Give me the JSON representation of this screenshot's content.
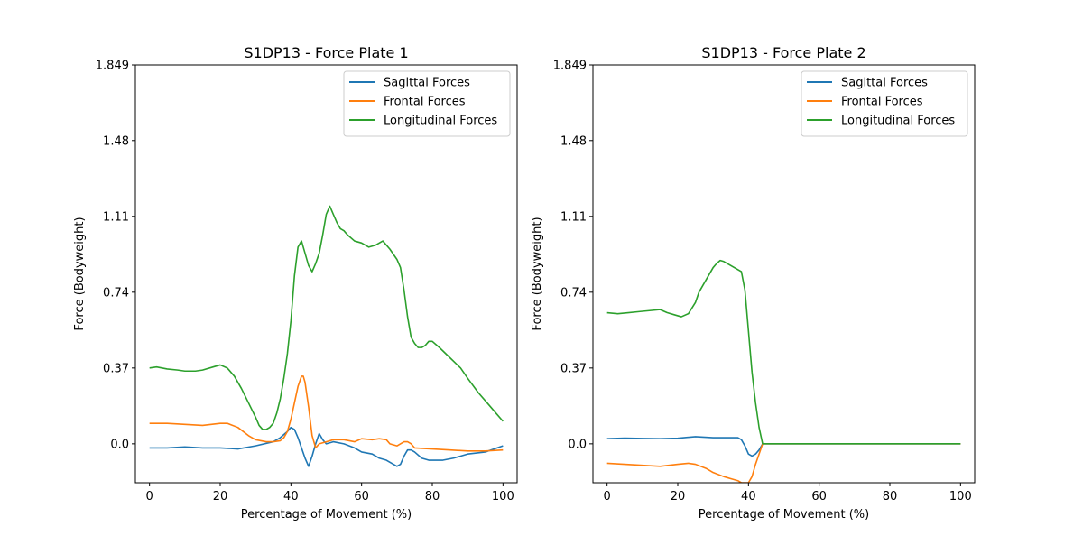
{
  "chart_data": [
    {
      "type": "line",
      "title": "S1DP13 - Force Plate 1",
      "xlabel": "Percentage of Movement (%)",
      "ylabel": "Force (Bodyweight)",
      "xlim": [
        -4,
        104
      ],
      "ylim": [
        -0.19,
        1.849
      ],
      "x_ticks": [
        0,
        20,
        40,
        60,
        80,
        100
      ],
      "x_tick_labels": [
        "0",
        "20",
        "40",
        "60",
        "80",
        "100"
      ],
      "y_ticks": [
        0.0,
        0.37,
        0.74,
        1.11,
        1.48,
        1.849
      ],
      "y_tick_labels": [
        "0.0",
        "0.37",
        "0.74",
        "1.11",
        "1.48",
        "1.849"
      ],
      "grid": false,
      "legend_position": "top-right",
      "series": [
        {
          "name": "Sagittal Forces",
          "color": "#1f77b4",
          "x": [
            0,
            5,
            10,
            15,
            20,
            25,
            30,
            35,
            37,
            39,
            40,
            41,
            42,
            43,
            44,
            45,
            46,
            47,
            48,
            49,
            50,
            52,
            55,
            58,
            60,
            63,
            65,
            67,
            69,
            70,
            71,
            72,
            73,
            74,
            75,
            77,
            79,
            80,
            83,
            86,
            90,
            95,
            100
          ],
          "y": [
            -0.02,
            -0.02,
            -0.015,
            -0.02,
            -0.02,
            -0.025,
            -0.01,
            0.01,
            0.03,
            0.06,
            0.08,
            0.07,
            0.03,
            -0.02,
            -0.07,
            -0.11,
            -0.06,
            0.0,
            0.05,
            0.02,
            0.0,
            0.01,
            0.0,
            -0.02,
            -0.04,
            -0.05,
            -0.07,
            -0.08,
            -0.1,
            -0.11,
            -0.1,
            -0.06,
            -0.03,
            -0.03,
            -0.04,
            -0.07,
            -0.08,
            -0.08,
            -0.08,
            -0.07,
            -0.05,
            -0.04,
            -0.01
          ]
        },
        {
          "name": "Frontal Forces",
          "color": "#ff7f0e",
          "x": [
            0,
            5,
            10,
            15,
            20,
            22,
            25,
            28,
            30,
            33,
            35,
            37,
            38,
            39,
            40,
            41,
            42,
            43,
            43.5,
            44,
            45,
            46,
            47,
            48,
            50,
            52,
            55,
            58,
            60,
            63,
            65,
            67,
            68,
            70,
            72,
            73,
            74,
            75,
            80,
            85,
            90,
            95,
            100
          ],
          "y": [
            0.1,
            0.1,
            0.095,
            0.09,
            0.1,
            0.1,
            0.08,
            0.04,
            0.02,
            0.01,
            0.01,
            0.015,
            0.03,
            0.06,
            0.12,
            0.2,
            0.28,
            0.33,
            0.33,
            0.3,
            0.18,
            0.04,
            -0.02,
            0.0,
            0.01,
            0.02,
            0.02,
            0.01,
            0.025,
            0.02,
            0.025,
            0.02,
            0.0,
            -0.01,
            0.01,
            0.01,
            0.0,
            -0.02,
            -0.025,
            -0.03,
            -0.035,
            -0.035,
            -0.03
          ]
        },
        {
          "name": "Longitudinal Forces",
          "color": "#2ca02c",
          "x": [
            0,
            2,
            5,
            8,
            10,
            13,
            15,
            18,
            20,
            22,
            24,
            26,
            28,
            30,
            31,
            32,
            33,
            34,
            35,
            36,
            37,
            38,
            39,
            40,
            41,
            42,
            43,
            44,
            45,
            46,
            47,
            48,
            49,
            50,
            51,
            52,
            53,
            54,
            55,
            56,
            58,
            60,
            62,
            64,
            66,
            68,
            70,
            71,
            72,
            73,
            74,
            75,
            76,
            77,
            78,
            79,
            80,
            82,
            85,
            88,
            90,
            93,
            96,
            98,
            100
          ],
          "y": [
            0.37,
            0.375,
            0.365,
            0.36,
            0.355,
            0.355,
            0.36,
            0.375,
            0.385,
            0.37,
            0.33,
            0.27,
            0.2,
            0.13,
            0.09,
            0.07,
            0.07,
            0.08,
            0.1,
            0.15,
            0.22,
            0.32,
            0.44,
            0.6,
            0.82,
            0.96,
            0.99,
            0.93,
            0.87,
            0.84,
            0.88,
            0.93,
            1.02,
            1.12,
            1.16,
            1.12,
            1.08,
            1.05,
            1.04,
            1.02,
            0.99,
            0.98,
            0.96,
            0.97,
            0.99,
            0.95,
            0.9,
            0.86,
            0.75,
            0.62,
            0.52,
            0.49,
            0.47,
            0.47,
            0.48,
            0.5,
            0.5,
            0.47,
            0.42,
            0.37,
            0.32,
            0.25,
            0.19,
            0.15,
            0.11
          ]
        }
      ]
    },
    {
      "type": "line",
      "title": "S1DP13 - Force Plate 2",
      "xlabel": "Percentage of Movement (%)",
      "ylabel": "Force (Bodyweight)",
      "xlim": [
        -4,
        104
      ],
      "ylim": [
        -0.19,
        1.849
      ],
      "x_ticks": [
        0,
        20,
        40,
        60,
        80,
        100
      ],
      "x_tick_labels": [
        "0",
        "20",
        "40",
        "60",
        "80",
        "100"
      ],
      "y_ticks": [
        0.0,
        0.37,
        0.74,
        1.11,
        1.48,
        1.849
      ],
      "y_tick_labels": [
        "0.0",
        "0.37",
        "0.74",
        "1.11",
        "1.48",
        "1.849"
      ],
      "grid": false,
      "legend_position": "top-right",
      "series": [
        {
          "name": "Sagittal Forces",
          "color": "#1f77b4",
          "x": [
            0,
            5,
            10,
            15,
            20,
            25,
            30,
            35,
            37,
            38,
            39,
            40,
            41,
            42,
            43,
            44,
            45,
            50,
            60,
            70,
            80,
            90,
            100
          ],
          "y": [
            0.025,
            0.028,
            0.026,
            0.025,
            0.027,
            0.035,
            0.03,
            0.03,
            0.03,
            0.02,
            -0.01,
            -0.05,
            -0.06,
            -0.05,
            -0.03,
            0.0,
            0.0,
            0.0,
            0.0,
            0.0,
            0.0,
            0.0,
            0.0
          ]
        },
        {
          "name": "Frontal Forces",
          "color": "#ff7f0e",
          "x": [
            0,
            5,
            10,
            15,
            20,
            23,
            25,
            28,
            30,
            33,
            35,
            37,
            38,
            39,
            40,
            41,
            42,
            43,
            44,
            45,
            50,
            60,
            70,
            80,
            90,
            100
          ],
          "y": [
            -0.095,
            -0.1,
            -0.105,
            -0.11,
            -0.1,
            -0.095,
            -0.1,
            -0.12,
            -0.14,
            -0.16,
            -0.17,
            -0.18,
            -0.19,
            -0.19,
            -0.19,
            -0.16,
            -0.1,
            -0.05,
            0.0,
            0.0,
            0.0,
            0.0,
            0.0,
            0.0,
            0.0,
            0.0
          ]
        },
        {
          "name": "Longitudinal Forces",
          "color": "#2ca02c",
          "x": [
            0,
            3,
            6,
            9,
            12,
            15,
            17,
            19,
            21,
            23,
            25,
            26,
            28,
            30,
            31,
            32,
            33,
            34,
            36,
            38,
            39,
            40,
            41,
            42,
            43,
            44,
            45,
            50,
            60,
            70,
            80,
            90,
            100
          ],
          "y": [
            0.64,
            0.635,
            0.64,
            0.645,
            0.65,
            0.655,
            0.64,
            0.63,
            0.62,
            0.635,
            0.69,
            0.74,
            0.8,
            0.86,
            0.88,
            0.895,
            0.89,
            0.88,
            0.86,
            0.84,
            0.75,
            0.55,
            0.35,
            0.2,
            0.08,
            0.0,
            0.0,
            0.0,
            0.0,
            0.0,
            0.0,
            0.0,
            0.0
          ]
        }
      ]
    }
  ]
}
